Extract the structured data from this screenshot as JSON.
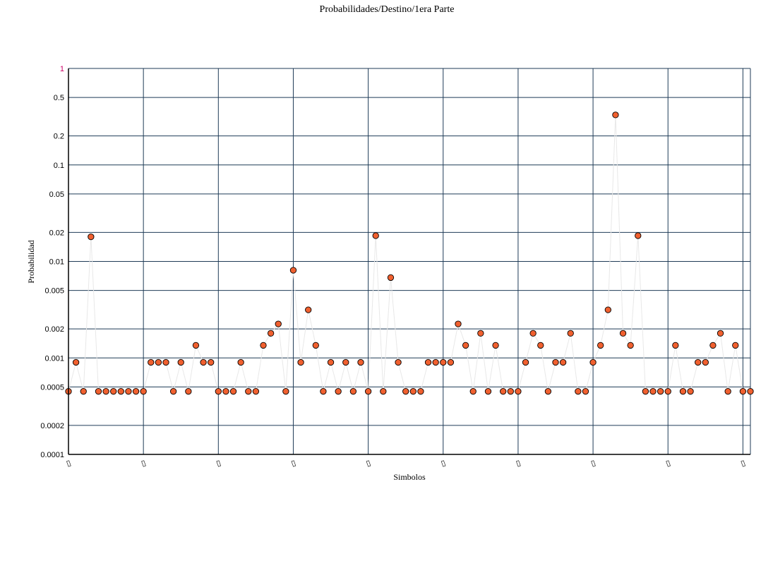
{
  "chart_data": {
    "type": "line",
    "title": "Probabilidades/Destino/1era Parte",
    "xlabel": "Simbolos",
    "ylabel": "Probabilidad",
    "yscale": "log",
    "ylim": [
      0.0001,
      1
    ],
    "yticks": [
      0.0001,
      0.0002,
      0.0005,
      0.001,
      0.002,
      0.005,
      0.01,
      0.02,
      0.05,
      0.1,
      0.2,
      0.5,
      1
    ],
    "ytick_labels": [
      "0.0001",
      "0.0002",
      "0.0005",
      "0.001",
      "0.002",
      "0.005",
      "0.01",
      "0.02",
      "0.05",
      "0.1",
      "0.2",
      "0.5",
      "1"
    ],
    "x_tick_labels": [
      "▯",
      "▯",
      "▯",
      "▯",
      "▯",
      "▯",
      "▯",
      "▯",
      "▯",
      "▯"
    ],
    "x_tick_every": 10,
    "grid": true,
    "reference_line": 1,
    "series": [
      {
        "name": "Probabilidad",
        "values": [
          0.00045,
          0.0009,
          0.00045,
          0.018,
          0.00045,
          0.00045,
          0.00045,
          0.00045,
          0.00045,
          0.00045,
          0.00045,
          0.0009,
          0.0009,
          0.0009,
          0.00045,
          0.0009,
          0.00045,
          0.00135,
          0.0009,
          0.0009,
          0.00045,
          0.00045,
          0.00045,
          0.0009,
          0.00045,
          0.00045,
          0.00135,
          0.0018,
          0.00225,
          0.00045,
          0.0081,
          0.0009,
          0.00315,
          0.00135,
          0.00045,
          0.0009,
          0.00045,
          0.0009,
          0.00045,
          0.0009,
          0.00045,
          0.0185,
          0.00045,
          0.0068,
          0.0009,
          0.00045,
          0.00045,
          0.00045,
          0.0009,
          0.0009,
          0.0009,
          0.0009,
          0.00225,
          0.00135,
          0.00045,
          0.0018,
          0.00045,
          0.00135,
          0.00045,
          0.00045,
          0.00045,
          0.0009,
          0.0018,
          0.00135,
          0.00045,
          0.0009,
          0.0009,
          0.0018,
          0.00045,
          0.00045,
          0.0009,
          0.00135,
          0.00315,
          0.33,
          0.0018,
          0.00135,
          0.0185,
          0.00045,
          0.00045,
          0.00045,
          0.00045,
          0.00135,
          0.00045,
          0.00045,
          0.0009,
          0.0009,
          0.00135,
          0.0018,
          0.00045,
          0.00135,
          0.00045,
          0.00045
        ]
      }
    ]
  }
}
